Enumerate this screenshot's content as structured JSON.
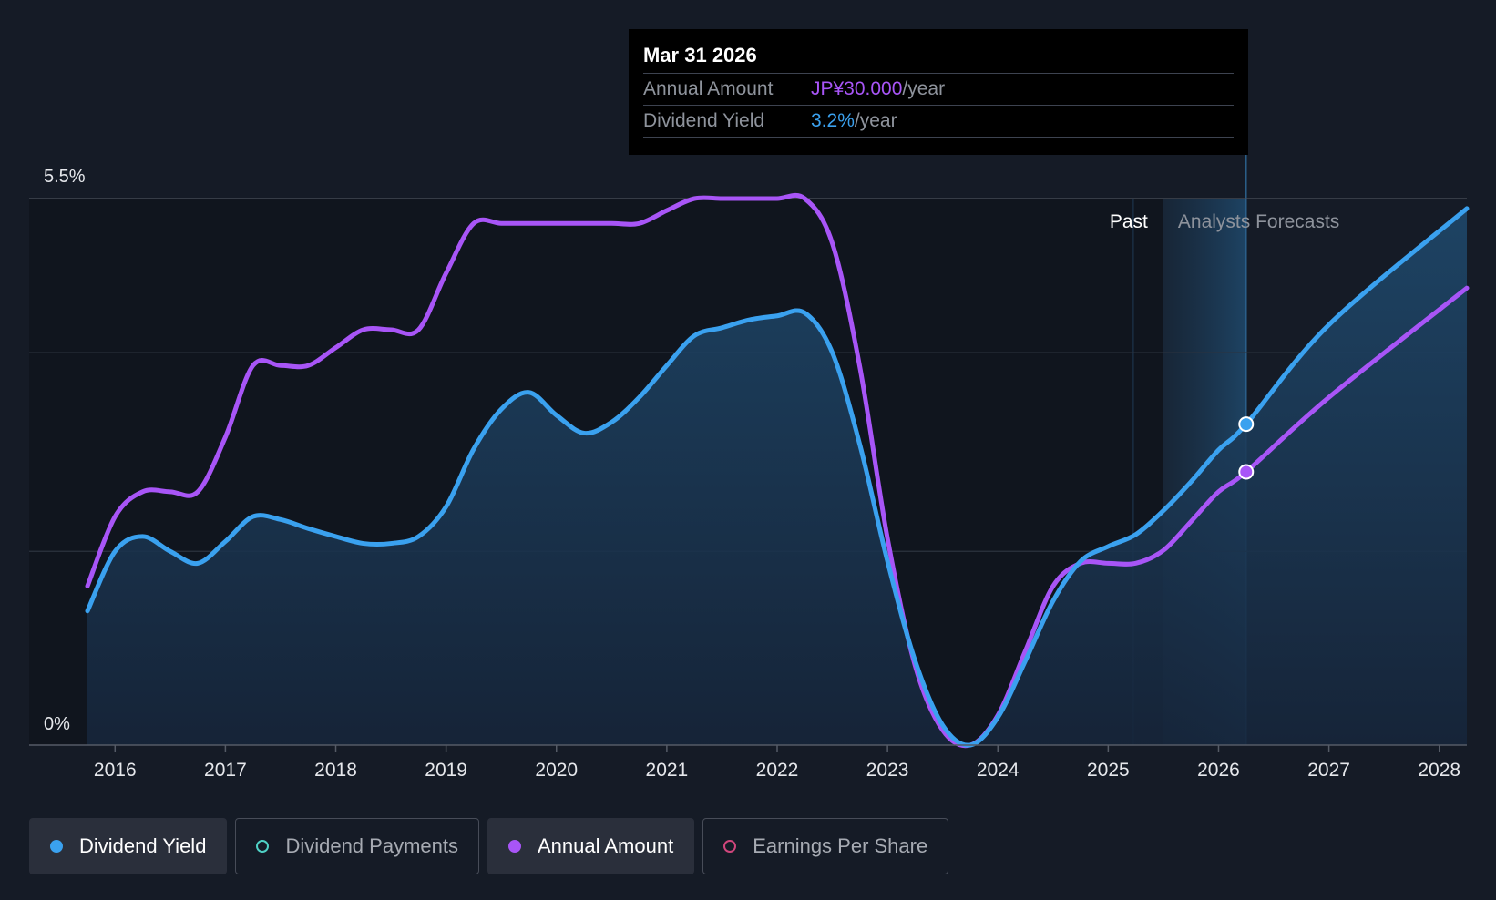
{
  "tooltip": {
    "date": "Mar 31 2026",
    "rows": [
      {
        "label": "Annual Amount",
        "value": "JP¥30.000",
        "suffix": "/year"
      },
      {
        "label": "Dividend Yield",
        "value": "3.2%",
        "suffix": "/year"
      }
    ]
  },
  "legend": [
    {
      "label": "Dividend Yield",
      "color": "#3aa1ef",
      "active": true
    },
    {
      "label": "Dividend Payments",
      "color": "#4fd1c5",
      "active": false
    },
    {
      "label": "Annual Amount",
      "color": "#a855f7",
      "active": true
    },
    {
      "label": "Earnings Per Share",
      "color": "#d0467c",
      "active": false
    }
  ],
  "chart_data": {
    "type": "line",
    "y_labels": {
      "top": "5.5%",
      "bottom": "0%"
    },
    "ylim": [
      0,
      5.5
    ],
    "xlim": [
      2015.75,
      2028.25
    ],
    "x_ticks": [
      "2016",
      "2017",
      "2018",
      "2019",
      "2020",
      "2021",
      "2022",
      "2023",
      "2024",
      "2025",
      "2026",
      "2027",
      "2028"
    ],
    "region_labels": {
      "past": "Past",
      "forecast": "Analysts Forecasts"
    },
    "past_end": 2025.5,
    "highlight_x": 2026.25,
    "grid": true,
    "series": [
      {
        "name": "Dividend Yield",
        "color": "#3aa1ef",
        "points": [
          [
            2015.75,
            1.35
          ],
          [
            2016.0,
            1.95
          ],
          [
            2016.25,
            2.1
          ],
          [
            2016.5,
            1.95
          ],
          [
            2016.75,
            1.83
          ],
          [
            2017.0,
            2.05
          ],
          [
            2017.25,
            2.3
          ],
          [
            2017.5,
            2.27
          ],
          [
            2017.75,
            2.18
          ],
          [
            2018.0,
            2.1
          ],
          [
            2018.25,
            2.03
          ],
          [
            2018.5,
            2.03
          ],
          [
            2018.75,
            2.1
          ],
          [
            2019.0,
            2.4
          ],
          [
            2019.25,
            2.98
          ],
          [
            2019.5,
            3.38
          ],
          [
            2019.75,
            3.55
          ],
          [
            2020.0,
            3.32
          ],
          [
            2020.25,
            3.14
          ],
          [
            2020.5,
            3.25
          ],
          [
            2020.75,
            3.5
          ],
          [
            2021.0,
            3.82
          ],
          [
            2021.25,
            4.12
          ],
          [
            2021.5,
            4.2
          ],
          [
            2021.75,
            4.28
          ],
          [
            2022.0,
            4.32
          ],
          [
            2022.25,
            4.35
          ],
          [
            2022.5,
            3.95
          ],
          [
            2022.75,
            3.02
          ],
          [
            2023.0,
            1.85
          ],
          [
            2023.25,
            0.85
          ],
          [
            2023.5,
            0.2
          ],
          [
            2023.75,
            0.0
          ],
          [
            2024.0,
            0.28
          ],
          [
            2024.25,
            0.85
          ],
          [
            2024.5,
            1.45
          ],
          [
            2024.75,
            1.85
          ],
          [
            2025.0,
            2.0
          ],
          [
            2025.25,
            2.12
          ],
          [
            2025.5,
            2.36
          ],
          [
            2025.75,
            2.65
          ],
          [
            2026.0,
            2.97
          ],
          [
            2026.25,
            3.23
          ],
          [
            2027.0,
            4.23
          ],
          [
            2028.25,
            5.4
          ]
        ]
      },
      {
        "name": "Annual Amount",
        "color": "#a855f7",
        "points": [
          [
            2015.75,
            1.6
          ],
          [
            2016.0,
            2.3
          ],
          [
            2016.25,
            2.55
          ],
          [
            2016.5,
            2.55
          ],
          [
            2016.75,
            2.55
          ],
          [
            2017.0,
            3.1
          ],
          [
            2017.25,
            3.82
          ],
          [
            2017.5,
            3.82
          ],
          [
            2017.75,
            3.82
          ],
          [
            2018.0,
            4.0
          ],
          [
            2018.25,
            4.18
          ],
          [
            2018.5,
            4.18
          ],
          [
            2018.75,
            4.18
          ],
          [
            2019.0,
            4.75
          ],
          [
            2019.25,
            5.25
          ],
          [
            2019.5,
            5.25
          ],
          [
            2019.75,
            5.25
          ],
          [
            2020.0,
            5.25
          ],
          [
            2020.25,
            5.25
          ],
          [
            2020.5,
            5.25
          ],
          [
            2020.75,
            5.25
          ],
          [
            2021.0,
            5.38
          ],
          [
            2021.25,
            5.5
          ],
          [
            2021.5,
            5.5
          ],
          [
            2021.75,
            5.5
          ],
          [
            2022.0,
            5.5
          ],
          [
            2022.25,
            5.5
          ],
          [
            2022.5,
            5.05
          ],
          [
            2022.75,
            3.8
          ],
          [
            2023.0,
            2.08
          ],
          [
            2023.25,
            0.8
          ],
          [
            2023.5,
            0.15
          ],
          [
            2023.75,
            0.0
          ],
          [
            2024.0,
            0.3
          ],
          [
            2024.25,
            0.95
          ],
          [
            2024.5,
            1.6
          ],
          [
            2024.75,
            1.83
          ],
          [
            2025.0,
            1.83
          ],
          [
            2025.25,
            1.83
          ],
          [
            2025.5,
            1.96
          ],
          [
            2025.75,
            2.25
          ],
          [
            2026.0,
            2.55
          ],
          [
            2026.25,
            2.75
          ],
          [
            2027.0,
            3.5
          ],
          [
            2028.25,
            4.6
          ]
        ]
      }
    ]
  }
}
